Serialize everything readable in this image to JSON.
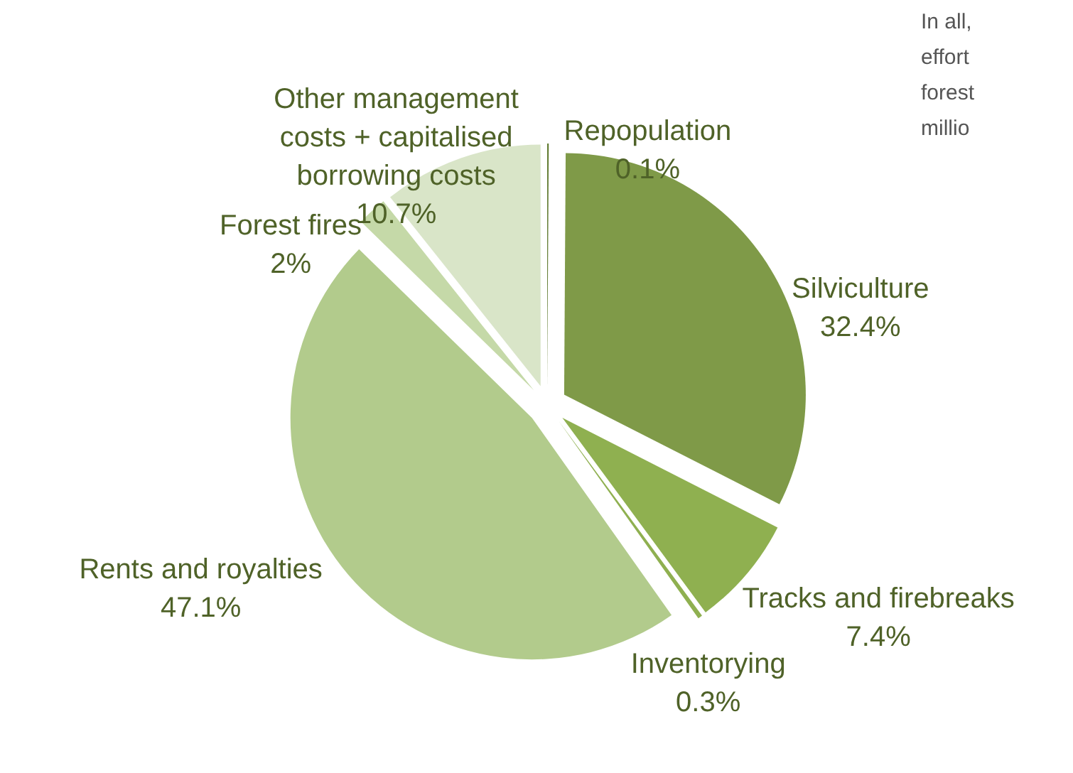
{
  "chart_data": {
    "type": "pie",
    "categories": [
      "Repopulation",
      "Silviculture",
      "Tracks and firebreaks",
      "Inventorying",
      "Rents and royalties",
      "Forest fires",
      "Other management costs + capitalised borrowing costs"
    ],
    "values": [
      0.1,
      32.4,
      7.4,
      0.3,
      47.1,
      2,
      10.7
    ],
    "value_labels": [
      "0.1%",
      "32.4%",
      "7.4%",
      "0.3%",
      "47.1%",
      "2%",
      "10.7%"
    ],
    "colors": [
      "#5f7a2e",
      "#7f9a48",
      "#8fb050",
      "#8fb050",
      "#b2cb8c",
      "#c5d9a8",
      "#d9e5c8"
    ],
    "annotations": [
      "In all,",
      "effort",
      "forest",
      "millio"
    ]
  }
}
